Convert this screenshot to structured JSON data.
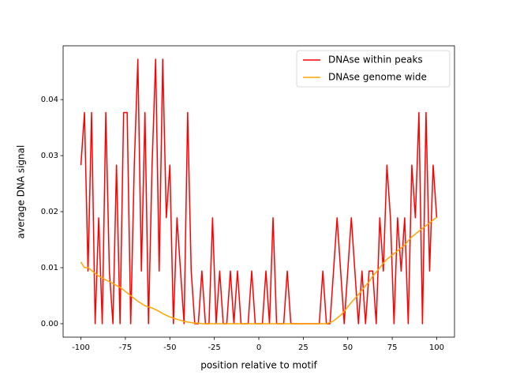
{
  "chart_data": {
    "type": "line",
    "xlabel": "position relative to motif",
    "ylabel": "average DNA signal",
    "x": [
      -100,
      -98,
      -96,
      -94,
      -92,
      -90,
      -88,
      -86,
      -84,
      -82,
      -80,
      -78,
      -76,
      -74,
      -72,
      -70,
      -68,
      -66,
      -64,
      -62,
      -60,
      -58,
      -56,
      -54,
      -52,
      -50,
      -48,
      -46,
      -44,
      -42,
      -40,
      -38,
      -36,
      -34,
      -32,
      -30,
      -28,
      -26,
      -24,
      -22,
      -20,
      -18,
      -16,
      -14,
      -12,
      -10,
      -8,
      -6,
      -4,
      -2,
      0,
      2,
      4,
      6,
      8,
      10,
      12,
      14,
      16,
      18,
      20,
      22,
      24,
      26,
      28,
      30,
      32,
      34,
      36,
      38,
      40,
      42,
      44,
      46,
      48,
      50,
      52,
      54,
      56,
      58,
      60,
      62,
      64,
      66,
      68,
      70,
      72,
      74,
      76,
      78,
      80,
      82,
      84,
      86,
      88,
      90,
      92,
      94,
      96,
      98,
      100
    ],
    "series": [
      {
        "name": "DNAse within peaks",
        "color": "#ff0000",
        "values": [
          0.0283,
          0.0377,
          0.0094,
          0.0377,
          0,
          0.0189,
          0,
          0.0377,
          0.0094,
          0,
          0.0283,
          0,
          0.0377,
          0.0377,
          0,
          0.0283,
          0.0472,
          0.0094,
          0.0377,
          0,
          0.0283,
          0.0472,
          0.0094,
          0.0472,
          0.0189,
          0.0283,
          0,
          0.0189,
          0.0094,
          0,
          0.0377,
          0.0094,
          0,
          0,
          0.0094,
          0,
          0,
          0.0189,
          0,
          0.0094,
          0,
          0,
          0.0094,
          0,
          0.0094,
          0,
          0,
          0,
          0.0094,
          0,
          0,
          0,
          0.0094,
          0,
          0.0189,
          0,
          0,
          0,
          0.0094,
          0,
          0,
          0,
          0,
          0,
          0,
          0,
          0,
          0,
          0.0094,
          0,
          0,
          0.0094,
          0.0189,
          0.0094,
          0,
          0.0094,
          0.0189,
          0.0094,
          0,
          0.0094,
          0,
          0.0094,
          0.0094,
          0,
          0.0189,
          0.0094,
          0.0283,
          0.0189,
          0,
          0.0189,
          0.0094,
          0.0189,
          0,
          0.0283,
          0.0189,
          0.0377,
          0,
          0.0377,
          0.0094,
          0.0283,
          0.0189
        ]
      },
      {
        "name": "DNAse genome wide",
        "color": "#ffa500",
        "values": [
          0.011,
          0.01,
          0.01,
          0.0095,
          0.009,
          0.0085,
          0.0082,
          0.0078,
          0.0075,
          0.0072,
          0.0068,
          0.0065,
          0.006,
          0.0055,
          0.005,
          0.0045,
          0.004,
          0.0036,
          0.0032,
          0.003,
          0.0028,
          0.0025,
          0.0022,
          0.0018,
          0.0015,
          0.0012,
          0.001,
          0.0008,
          0.0006,
          0.0004,
          0.0003,
          0.0002,
          0.0001,
          0.0001,
          0,
          0,
          0,
          0,
          0,
          0,
          0,
          0,
          0,
          0,
          0,
          0,
          0,
          0,
          0,
          0,
          0,
          0,
          0,
          0,
          0,
          0,
          0,
          0,
          0,
          0,
          0,
          0,
          0,
          0,
          0,
          0,
          0,
          0,
          0,
          0,
          0.0002,
          0.0005,
          0.001,
          0.0015,
          0.0022,
          0.003,
          0.0038,
          0.0045,
          0.0052,
          0.006,
          0.0068,
          0.0075,
          0.0085,
          0.0092,
          0.01,
          0.0108,
          0.0115,
          0.012,
          0.0125,
          0.013,
          0.0135,
          0.014,
          0.0148,
          0.0155,
          0.016,
          0.0165,
          0.017,
          0.0175,
          0.018,
          0.0185,
          0.019
        ]
      }
    ],
    "xlim": [
      -110,
      110
    ],
    "ylim": [
      -0.0024,
      0.0496
    ],
    "xticks": [
      -100,
      -75,
      -50,
      -25,
      0,
      25,
      50,
      75,
      100
    ],
    "yticks": [
      {
        "value": 0,
        "label": "0.00"
      },
      {
        "value": 0.01,
        "label": "0.01"
      },
      {
        "value": 0.02,
        "label": "0.02"
      },
      {
        "value": 0.03,
        "label": "0.03"
      },
      {
        "value": 0.04,
        "label": "0.04"
      }
    ],
    "legend": "upper right"
  }
}
